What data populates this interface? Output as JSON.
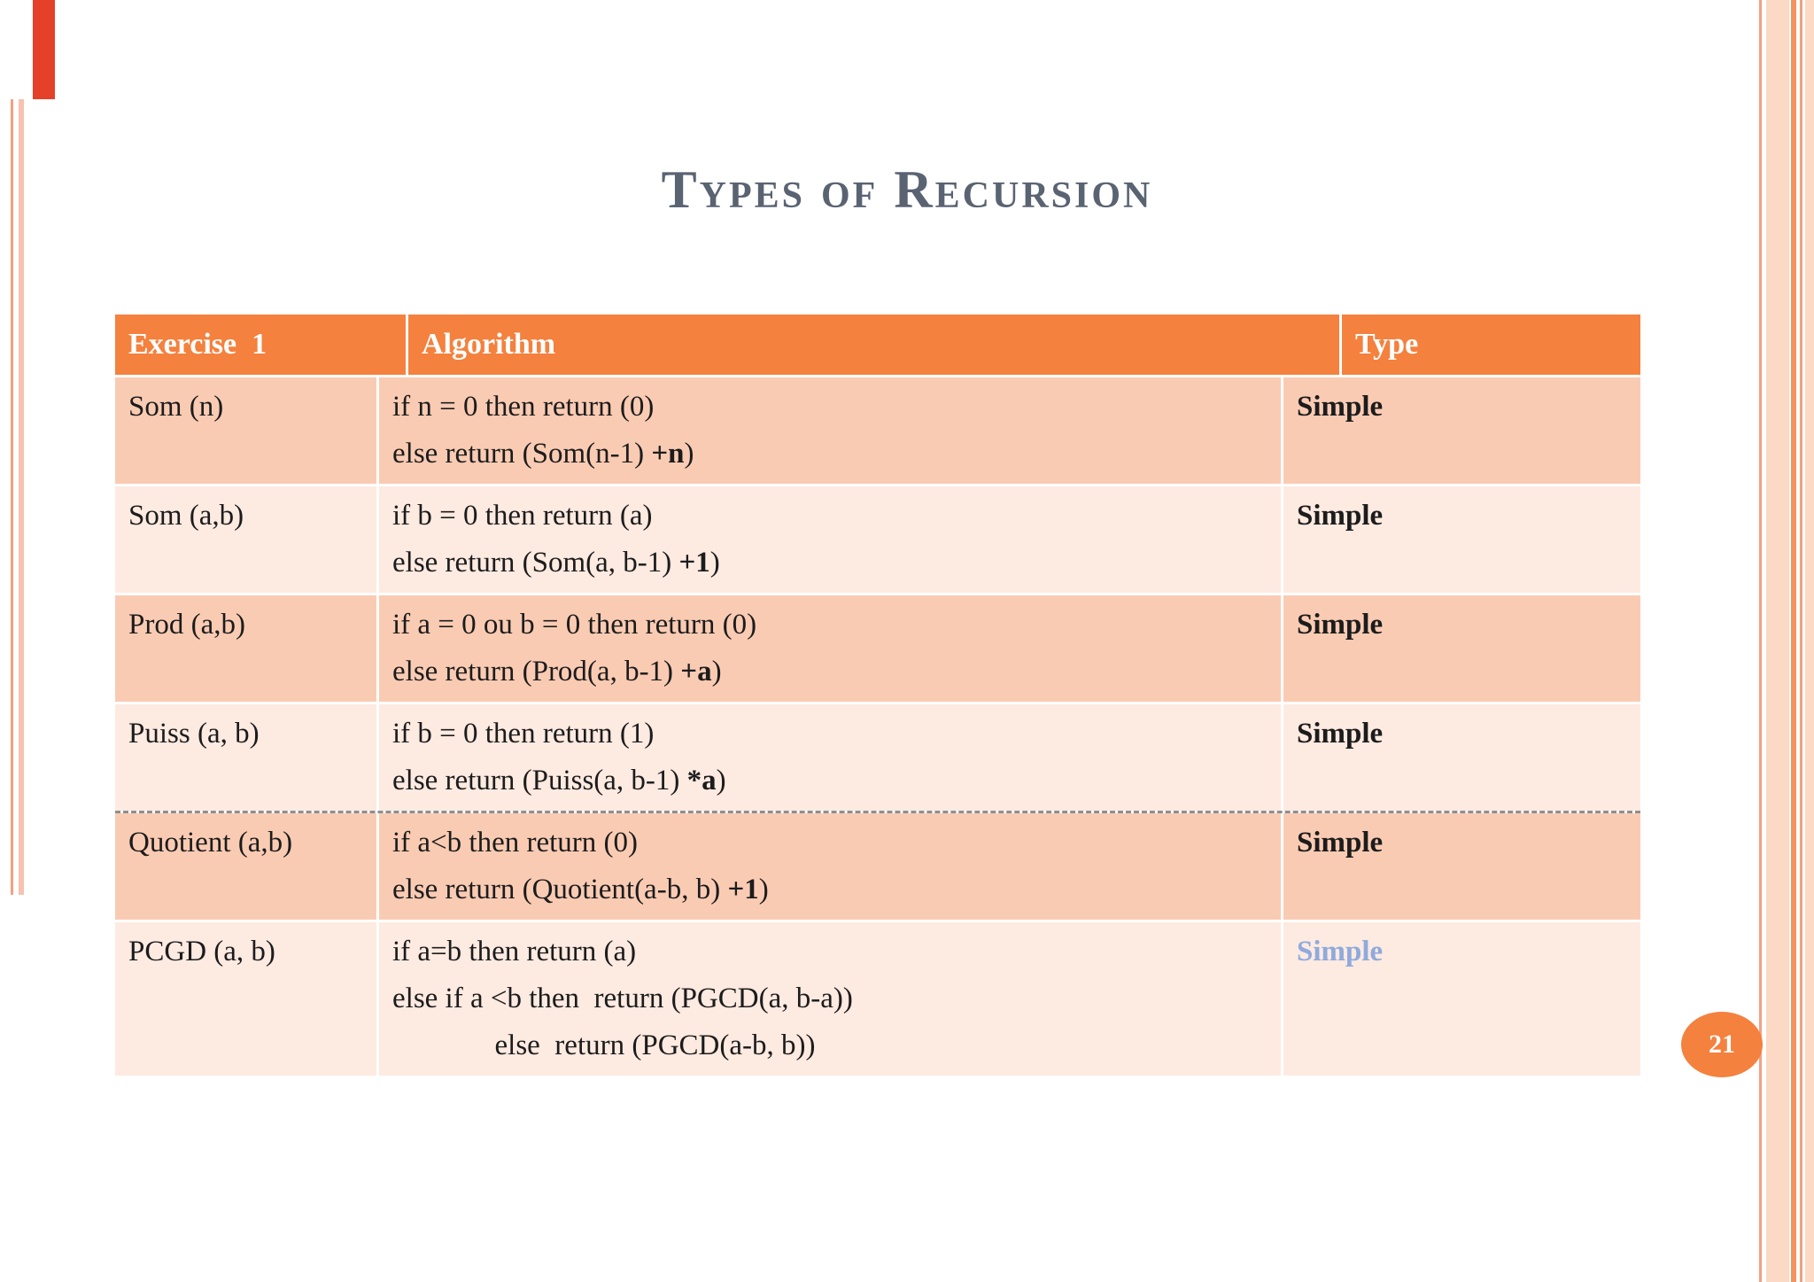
{
  "slide": {
    "title": "Types of Recursion",
    "page_number": "21"
  },
  "colors": {
    "header_bg": "#F4813E",
    "row_odd_bg": "#FACBB3",
    "row_even_bg": "#FDEAE1",
    "title_color": "#5A6372",
    "text_color": "#1C1C1C",
    "type_blue": "#8FAADC",
    "accent_red": "#E5402A",
    "stripe_dark": "#F2A184",
    "stripe_mid": "#F4935E",
    "stripe_light": "#FBD9C5",
    "badge_bg": "#F4813E"
  },
  "table": {
    "headers": [
      "Exercise  1",
      "Algorithm",
      "Type"
    ],
    "rows": [
      {
        "exercise": "Som (n)",
        "algorithm": [
          [
            {
              "t": "if n = 0 then return (0)"
            }
          ],
          [
            {
              "t": "else return (Som(n-1) "
            },
            {
              "t": "+n",
              "b": true
            },
            {
              "t": ")"
            }
          ]
        ],
        "type": "Simple",
        "type_color": "#1C1C1C"
      },
      {
        "exercise": "Som (a,b)",
        "algorithm": [
          [
            {
              "t": "if b = 0 then return (a)"
            }
          ],
          [
            {
              "t": "else return (Som(a, b-1) "
            },
            {
              "t": "+1",
              "b": true
            },
            {
              "t": ")"
            }
          ]
        ],
        "type": "Simple",
        "type_color": "#1C1C1C"
      },
      {
        "exercise": "Prod (a,b)",
        "algorithm": [
          [
            {
              "t": "if a = 0 ou b = 0 then return (0)"
            }
          ],
          [
            {
              "t": "else return (Prod(a, b-1) "
            },
            {
              "t": "+a",
              "b": true
            },
            {
              "t": ")"
            }
          ]
        ],
        "type": "Simple",
        "type_color": "#1C1C1C"
      },
      {
        "exercise": "Puiss (a, b)",
        "algorithm": [
          [
            {
              "t": "if b = 0 then return (1)"
            }
          ],
          [
            {
              "t": "else return (Puiss(a, b-1) "
            },
            {
              "t": "*a",
              "b": true
            },
            {
              "t": ")"
            }
          ]
        ],
        "type": "Simple",
        "type_color": "#1C1C1C"
      },
      {
        "exercise": "Quotient (a,b)",
        "dashed_top": true,
        "algorithm": [
          [
            {
              "t": "if a<b then return (0)"
            }
          ],
          [
            {
              "t": "else return (Quotient(a-b, b) "
            },
            {
              "t": "+1",
              "b": true
            },
            {
              "t": ")"
            }
          ]
        ],
        "type": "Simple",
        "type_color": "#1C1C1C"
      },
      {
        "exercise": "PCGD (a, b)",
        "algorithm": [
          [
            {
              "t": "if a=b then return (a)"
            }
          ],
          [
            {
              "t": "else if a <b then  return (PGCD(a, b-a))"
            }
          ],
          [
            {
              "t": "              else  return (PGCD(a-b, b))"
            }
          ]
        ],
        "type": "Simple",
        "type_color": "#8FAADC"
      }
    ]
  }
}
